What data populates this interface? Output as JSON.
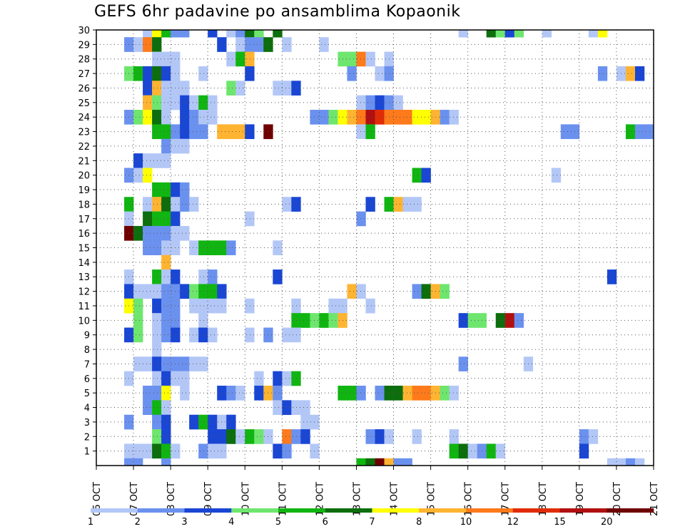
{
  "chart_data": {
    "type": "heatmap",
    "title": "GEFS 6hr padavine po ansamblima Kopaonik",
    "xlabel": "",
    "ylabel": "",
    "x_ticks": [
      "06 OCT",
      "07 OCT",
      "08 OCT",
      "09 OCT",
      "10 OCT",
      "11 OCT",
      "12 OCT",
      "13 OCT",
      "14 OCT",
      "15 OCT",
      "16 OCT",
      "17 OCT",
      "18 OCT",
      "19 OCT",
      "20 OCT",
      "21 OCT"
    ],
    "xlim": [
      0,
      60
    ],
    "x_unit": "6-hour step from 06 OCT 00z",
    "y_ticks": [
      1,
      2,
      3,
      4,
      5,
      6,
      7,
      8,
      9,
      10,
      11,
      12,
      13,
      14,
      15,
      16,
      17,
      18,
      19,
      20,
      21,
      22,
      23,
      24,
      25,
      26,
      27,
      28,
      29,
      30
    ],
    "ylim": [
      0,
      30
    ],
    "grid": true,
    "legend": {
      "placement": "bottom",
      "labels": [
        "1",
        "2",
        "3",
        "4",
        "5",
        "6",
        "7",
        "8",
        "10",
        "12",
        "15",
        "20"
      ],
      "colors": [
        "#b3c7f7",
        "#6b91ef",
        "#1a46d4",
        "#6ee66e",
        "#11b511",
        "#0c6e0c",
        "#ffff00",
        "#ffb431",
        "#ff7a1a",
        "#e02c07",
        "#b11010",
        "#6e0000"
      ]
    },
    "category_colors": [
      "#b3c7f7",
      "#6b91ef",
      "#1a46d4",
      "#6ee66e",
      "#11b511",
      "#0c6e0c",
      "#ffff00",
      "#ffb431",
      "#ff7a1a",
      "#e02c07",
      "#b11010",
      "#6e0000"
    ],
    "cells": [
      [
        5,
        30,
        1
      ],
      [
        6,
        30,
        7
      ],
      [
        7,
        30,
        5
      ],
      [
        8,
        30,
        2
      ],
      [
        9,
        30,
        2
      ],
      [
        12,
        30,
        3
      ],
      [
        14,
        30,
        1
      ],
      [
        15,
        30,
        2
      ],
      [
        16,
        30,
        6
      ],
      [
        17,
        30,
        4
      ],
      [
        19,
        30,
        6
      ],
      [
        39,
        30,
        1
      ],
      [
        42,
        30,
        6
      ],
      [
        43,
        30,
        4
      ],
      [
        44,
        30,
        3
      ],
      [
        45,
        30,
        4
      ],
      [
        48,
        30,
        1
      ],
      [
        53,
        30,
        1
      ],
      [
        54,
        30,
        7
      ],
      [
        3,
        29,
        2
      ],
      [
        4,
        29,
        1
      ],
      [
        5,
        29,
        9
      ],
      [
        6,
        29,
        6
      ],
      [
        13,
        29,
        3
      ],
      [
        15,
        29,
        1
      ],
      [
        16,
        29,
        2
      ],
      [
        17,
        29,
        2
      ],
      [
        18,
        29,
        6
      ],
      [
        20,
        29,
        1
      ],
      [
        24,
        29,
        1
      ],
      [
        6,
        28,
        1
      ],
      [
        7,
        28,
        1
      ],
      [
        8,
        28,
        1
      ],
      [
        14,
        28,
        1
      ],
      [
        15,
        28,
        5
      ],
      [
        16,
        28,
        8
      ],
      [
        26,
        28,
        4
      ],
      [
        27,
        28,
        4
      ],
      [
        28,
        28,
        9
      ],
      [
        29,
        28,
        1
      ],
      [
        31,
        28,
        1
      ],
      [
        3,
        27,
        4
      ],
      [
        4,
        27,
        5
      ],
      [
        5,
        27,
        3
      ],
      [
        6,
        27,
        6
      ],
      [
        7,
        27,
        3
      ],
      [
        8,
        27,
        1
      ],
      [
        11,
        27,
        1
      ],
      [
        16,
        27,
        3
      ],
      [
        27,
        27,
        2
      ],
      [
        30,
        27,
        1
      ],
      [
        31,
        27,
        2
      ],
      [
        54,
        27,
        2
      ],
      [
        56,
        27,
        1
      ],
      [
        57,
        27,
        8
      ],
      [
        58,
        27,
        3
      ],
      [
        5,
        26,
        3
      ],
      [
        6,
        26,
        8
      ],
      [
        7,
        26,
        1
      ],
      [
        8,
        26,
        1
      ],
      [
        9,
        26,
        1
      ],
      [
        14,
        26,
        4
      ],
      [
        15,
        26,
        1
      ],
      [
        19,
        26,
        1
      ],
      [
        20,
        26,
        1
      ],
      [
        21,
        26,
        3
      ],
      [
        5,
        25,
        8
      ],
      [
        6,
        25,
        4
      ],
      [
        7,
        25,
        1
      ],
      [
        8,
        25,
        1
      ],
      [
        9,
        25,
        3
      ],
      [
        10,
        25,
        1
      ],
      [
        11,
        25,
        5
      ],
      [
        12,
        25,
        1
      ],
      [
        28,
        25,
        1
      ],
      [
        29,
        25,
        2
      ],
      [
        30,
        25,
        3
      ],
      [
        31,
        25,
        2
      ],
      [
        32,
        25,
        1
      ],
      [
        3,
        24,
        2
      ],
      [
        4,
        24,
        4
      ],
      [
        5,
        24,
        7
      ],
      [
        6,
        24,
        6
      ],
      [
        7,
        24,
        1
      ],
      [
        9,
        24,
        3
      ],
      [
        10,
        24,
        2
      ],
      [
        11,
        24,
        1
      ],
      [
        12,
        24,
        1
      ],
      [
        23,
        24,
        2
      ],
      [
        24,
        24,
        2
      ],
      [
        25,
        24,
        4
      ],
      [
        26,
        24,
        7
      ],
      [
        27,
        24,
        8
      ],
      [
        28,
        24,
        9
      ],
      [
        29,
        24,
        11
      ],
      [
        30,
        24,
        10
      ],
      [
        31,
        24,
        9
      ],
      [
        32,
        24,
        9
      ],
      [
        33,
        24,
        9
      ],
      [
        34,
        24,
        7
      ],
      [
        35,
        24,
        7
      ],
      [
        36,
        24,
        8
      ],
      [
        37,
        24,
        2
      ],
      [
        38,
        24,
        1
      ],
      [
        6,
        23,
        5
      ],
      [
        7,
        23,
        5
      ],
      [
        8,
        23,
        2
      ],
      [
        9,
        23,
        3
      ],
      [
        10,
        23,
        2
      ],
      [
        11,
        23,
        2
      ],
      [
        13,
        23,
        8
      ],
      [
        14,
        23,
        8
      ],
      [
        15,
        23,
        8
      ],
      [
        16,
        23,
        3
      ],
      [
        18,
        23,
        12
      ],
      [
        28,
        23,
        1
      ],
      [
        29,
        23,
        5
      ],
      [
        50,
        23,
        2
      ],
      [
        51,
        23,
        2
      ],
      [
        57,
        23,
        5
      ],
      [
        58,
        23,
        2
      ],
      [
        59,
        23,
        2
      ],
      [
        7,
        22,
        2
      ],
      [
        8,
        22,
        1
      ],
      [
        9,
        22,
        1
      ],
      [
        4,
        21,
        3
      ],
      [
        5,
        21,
        1
      ],
      [
        6,
        21,
        1
      ],
      [
        7,
        21,
        1
      ],
      [
        3,
        20,
        2
      ],
      [
        4,
        20,
        1
      ],
      [
        5,
        20,
        7
      ],
      [
        34,
        20,
        5
      ],
      [
        35,
        20,
        3
      ],
      [
        49,
        20,
        1
      ],
      [
        6,
        19,
        5
      ],
      [
        7,
        19,
        5
      ],
      [
        8,
        19,
        3
      ],
      [
        9,
        19,
        2
      ],
      [
        3,
        18,
        5
      ],
      [
        5,
        18,
        1
      ],
      [
        6,
        18,
        8
      ],
      [
        7,
        18,
        6
      ],
      [
        8,
        18,
        1
      ],
      [
        9,
        18,
        2
      ],
      [
        10,
        18,
        1
      ],
      [
        20,
        18,
        1
      ],
      [
        21,
        18,
        3
      ],
      [
        29,
        18,
        3
      ],
      [
        31,
        18,
        5
      ],
      [
        32,
        18,
        8
      ],
      [
        33,
        18,
        1
      ],
      [
        34,
        18,
        1
      ],
      [
        3,
        17,
        1
      ],
      [
        5,
        17,
        6
      ],
      [
        6,
        17,
        5
      ],
      [
        7,
        17,
        5
      ],
      [
        8,
        17,
        3
      ],
      [
        16,
        17,
        1
      ],
      [
        28,
        17,
        2
      ],
      [
        3,
        16,
        12
      ],
      [
        4,
        16,
        6
      ],
      [
        5,
        16,
        2
      ],
      [
        6,
        16,
        2
      ],
      [
        7,
        16,
        2
      ],
      [
        8,
        16,
        1
      ],
      [
        9,
        16,
        1
      ],
      [
        5,
        15,
        2
      ],
      [
        6,
        15,
        2
      ],
      [
        7,
        15,
        1
      ],
      [
        8,
        15,
        1
      ],
      [
        10,
        15,
        1
      ],
      [
        11,
        15,
        5
      ],
      [
        12,
        15,
        5
      ],
      [
        13,
        15,
        5
      ],
      [
        14,
        15,
        2
      ],
      [
        19,
        15,
        1
      ],
      [
        7,
        14,
        8
      ],
      [
        3,
        13,
        1
      ],
      [
        6,
        13,
        5
      ],
      [
        7,
        13,
        1
      ],
      [
        8,
        13,
        3
      ],
      [
        11,
        13,
        1
      ],
      [
        12,
        13,
        2
      ],
      [
        19,
        13,
        3
      ],
      [
        55,
        13,
        3
      ],
      [
        3,
        12,
        3
      ],
      [
        4,
        12,
        1
      ],
      [
        5,
        12,
        1
      ],
      [
        6,
        12,
        1
      ],
      [
        7,
        12,
        2
      ],
      [
        8,
        12,
        2
      ],
      [
        9,
        12,
        3
      ],
      [
        10,
        12,
        4
      ],
      [
        11,
        12,
        5
      ],
      [
        12,
        12,
        5
      ],
      [
        13,
        12,
        3
      ],
      [
        27,
        12,
        8
      ],
      [
        28,
        12,
        1
      ],
      [
        34,
        12,
        2
      ],
      [
        35,
        12,
        6
      ],
      [
        36,
        12,
        8
      ],
      [
        37,
        12,
        4
      ],
      [
        3,
        11,
        7
      ],
      [
        4,
        11,
        4
      ],
      [
        6,
        11,
        3
      ],
      [
        7,
        11,
        2
      ],
      [
        8,
        11,
        2
      ],
      [
        10,
        11,
        1
      ],
      [
        11,
        11,
        1
      ],
      [
        12,
        11,
        1
      ],
      [
        13,
        11,
        1
      ],
      [
        16,
        11,
        1
      ],
      [
        21,
        11,
        1
      ],
      [
        25,
        11,
        1
      ],
      [
        26,
        11,
        1
      ],
      [
        29,
        11,
        1
      ],
      [
        4,
        10,
        4
      ],
      [
        6,
        10,
        1
      ],
      [
        7,
        10,
        2
      ],
      [
        8,
        10,
        2
      ],
      [
        11,
        10,
        1
      ],
      [
        21,
        10,
        5
      ],
      [
        22,
        10,
        5
      ],
      [
        23,
        10,
        4
      ],
      [
        24,
        10,
        5
      ],
      [
        25,
        10,
        4
      ],
      [
        26,
        10,
        8
      ],
      [
        39,
        10,
        3
      ],
      [
        40,
        10,
        4
      ],
      [
        41,
        10,
        4
      ],
      [
        43,
        10,
        6
      ],
      [
        44,
        10,
        11
      ],
      [
        45,
        10,
        2
      ],
      [
        3,
        9,
        3
      ],
      [
        4,
        9,
        4
      ],
      [
        6,
        9,
        1
      ],
      [
        7,
        9,
        2
      ],
      [
        8,
        9,
        3
      ],
      [
        10,
        9,
        1
      ],
      [
        11,
        9,
        3
      ],
      [
        12,
        9,
        1
      ],
      [
        16,
        9,
        1
      ],
      [
        18,
        9,
        2
      ],
      [
        20,
        9,
        1
      ],
      [
        21,
        9,
        1
      ],
      [
        6,
        8,
        1
      ],
      [
        4,
        7,
        1
      ],
      [
        5,
        7,
        1
      ],
      [
        6,
        7,
        3
      ],
      [
        7,
        7,
        2
      ],
      [
        8,
        7,
        2
      ],
      [
        9,
        7,
        2
      ],
      [
        10,
        7,
        1
      ],
      [
        11,
        7,
        1
      ],
      [
        39,
        7,
        2
      ],
      [
        46,
        7,
        1
      ],
      [
        3,
        6,
        1
      ],
      [
        6,
        6,
        1
      ],
      [
        7,
        6,
        3
      ],
      [
        8,
        6,
        1
      ],
      [
        9,
        6,
        1
      ],
      [
        17,
        6,
        1
      ],
      [
        19,
        6,
        3
      ],
      [
        20,
        6,
        1
      ],
      [
        21,
        6,
        5
      ],
      [
        5,
        5,
        2
      ],
      [
        6,
        5,
        2
      ],
      [
        7,
        5,
        7
      ],
      [
        9,
        5,
        1
      ],
      [
        13,
        5,
        3
      ],
      [
        14,
        5,
        2
      ],
      [
        15,
        5,
        1
      ],
      [
        17,
        5,
        3
      ],
      [
        18,
        5,
        8
      ],
      [
        19,
        5,
        2
      ],
      [
        26,
        5,
        5
      ],
      [
        27,
        5,
        5
      ],
      [
        28,
        5,
        2
      ],
      [
        30,
        5,
        2
      ],
      [
        31,
        5,
        6
      ],
      [
        32,
        5,
        6
      ],
      [
        33,
        5,
        8
      ],
      [
        34,
        5,
        9
      ],
      [
        35,
        5,
        9
      ],
      [
        36,
        5,
        8
      ],
      [
        37,
        5,
        4
      ],
      [
        38,
        5,
        1
      ],
      [
        5,
        4,
        2
      ],
      [
        6,
        4,
        5
      ],
      [
        7,
        4,
        1
      ],
      [
        19,
        4,
        1
      ],
      [
        20,
        4,
        3
      ],
      [
        21,
        4,
        1
      ],
      [
        22,
        4,
        1
      ],
      [
        3,
        3,
        2
      ],
      [
        6,
        3,
        2
      ],
      [
        7,
        3,
        3
      ],
      [
        10,
        3,
        3
      ],
      [
        11,
        3,
        5
      ],
      [
        12,
        3,
        3
      ],
      [
        13,
        3,
        1
      ],
      [
        14,
        3,
        3
      ],
      [
        22,
        3,
        1
      ],
      [
        23,
        3,
        1
      ],
      [
        6,
        2,
        4
      ],
      [
        7,
        2,
        3
      ],
      [
        12,
        2,
        3
      ],
      [
        13,
        2,
        3
      ],
      [
        14,
        2,
        6
      ],
      [
        15,
        2,
        1
      ],
      [
        16,
        2,
        5
      ],
      [
        17,
        2,
        4
      ],
      [
        18,
        2,
        1
      ],
      [
        20,
        2,
        9
      ],
      [
        21,
        2,
        2
      ],
      [
        22,
        2,
        3
      ],
      [
        29,
        2,
        2
      ],
      [
        30,
        2,
        3
      ],
      [
        31,
        2,
        1
      ],
      [
        34,
        2,
        1
      ],
      [
        38,
        2,
        1
      ],
      [
        52,
        2,
        2
      ],
      [
        53,
        2,
        1
      ],
      [
        3,
        1,
        1
      ],
      [
        4,
        1,
        1
      ],
      [
        5,
        1,
        1
      ],
      [
        6,
        1,
        6
      ],
      [
        7,
        1,
        5
      ],
      [
        8,
        1,
        1
      ],
      [
        11,
        1,
        2
      ],
      [
        12,
        1,
        1
      ],
      [
        13,
        1,
        1
      ],
      [
        19,
        1,
        3
      ],
      [
        20,
        1,
        2
      ],
      [
        23,
        1,
        1
      ],
      [
        38,
        1,
        5
      ],
      [
        39,
        1,
        6
      ],
      [
        40,
        1,
        1
      ],
      [
        41,
        1,
        2
      ],
      [
        42,
        1,
        5
      ],
      [
        43,
        1,
        1
      ],
      [
        52,
        1,
        3
      ],
      [
        3,
        0,
        2
      ],
      [
        4,
        0,
        2
      ],
      [
        7,
        0,
        2
      ],
      [
        28,
        0,
        5
      ],
      [
        29,
        0,
        6
      ],
      [
        30,
        0,
        12
      ],
      [
        31,
        0,
        8
      ],
      [
        32,
        0,
        2
      ],
      [
        33,
        0,
        2
      ],
      [
        55,
        0,
        1
      ],
      [
        56,
        0,
        1
      ],
      [
        57,
        0,
        2
      ],
      [
        58,
        0,
        1
      ]
    ]
  }
}
